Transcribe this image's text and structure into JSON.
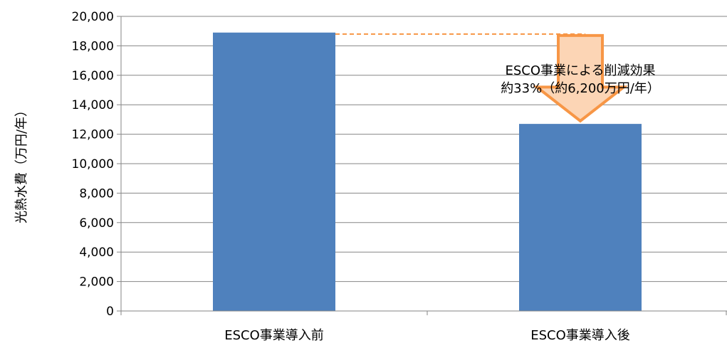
{
  "chart_data": {
    "type": "bar",
    "categories": [
      "ESCO事業導入前",
      "ESCO事業導入後"
    ],
    "values": [
      18900,
      12700
    ],
    "ylabel": "光熱水費（万円/年）",
    "ylim": [
      0,
      20000
    ],
    "ytick_step": 2000,
    "yticks": [
      "0",
      "2,000",
      "4,000",
      "6,000",
      "8,000",
      "10,000",
      "12,000",
      "14,000",
      "16,000",
      "18,000",
      "20,000"
    ],
    "grid": true,
    "bar_color": "#4f81bd",
    "reference_line": {
      "value": 18800,
      "color": "#f79646",
      "style": "dashed"
    },
    "annotation": {
      "lines": [
        "ESCO事業による削減効果",
        "約33%（約6,200万円/年）"
      ],
      "arrow_fill": "#fcd5b5",
      "arrow_stroke": "#f79646"
    }
  }
}
